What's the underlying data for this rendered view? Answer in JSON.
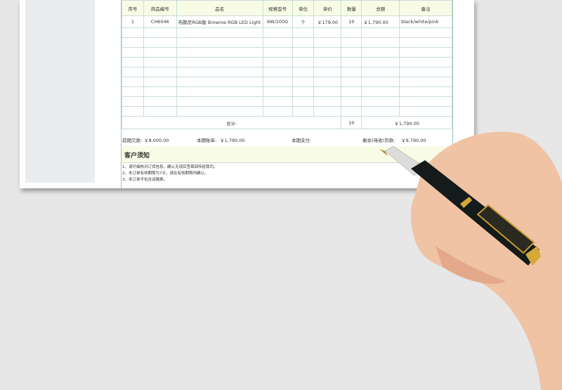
{
  "table": {
    "headers": [
      "序号",
      "商品编号",
      "品名",
      "规格型号",
      "单位",
      "单价",
      "数量",
      "总额",
      "备注"
    ],
    "rows": [
      [
        "1",
        "CH6046",
        "布鹏尼RGB版 Brownie RGB LED Light",
        "6W/100G",
        "个",
        "￥179.00",
        "10",
        "￥1,790.00",
        "black/white/pink"
      ]
    ],
    "total": {
      "label": "合计:",
      "qty": "10",
      "amount": "￥1,790.00"
    }
  },
  "summary": {
    "prev_debt_label": "前期欠款:",
    "prev_debt": "￥8,000.00",
    "current_bill_label": "本期账单:",
    "current_bill": "￥1,790.00",
    "current_paid_label": "本期支付:",
    "remaining_label": "剩余(待收)货款:",
    "remaining": "￥9,790.00"
  },
  "notice": {
    "title": "客户须知",
    "items": [
      "1、请仔细核对订货信息，确认无误后签章回传给我司。",
      "2、本订单有效期限为7天，请在有效期限内确认。",
      "3、本订单不包含运输费。"
    ]
  }
}
